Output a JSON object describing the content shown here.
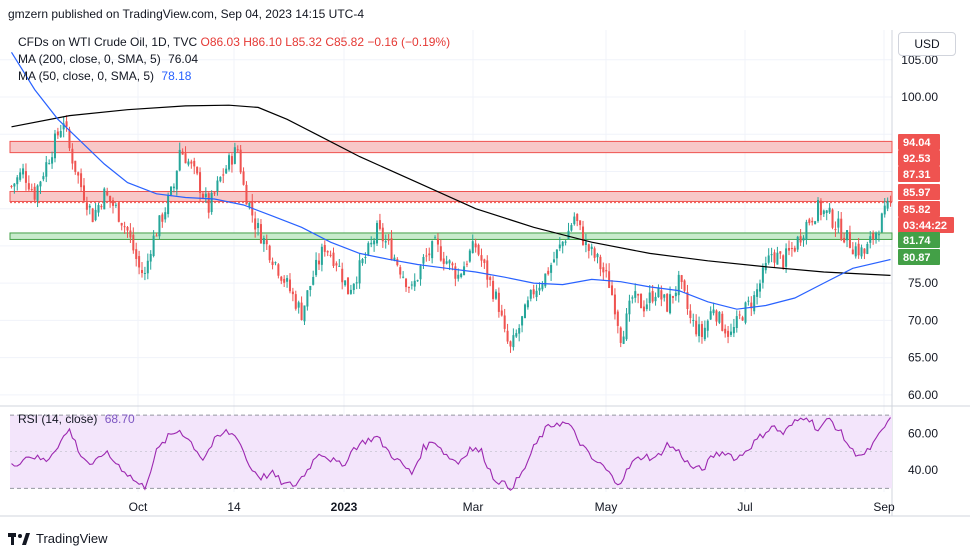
{
  "publisher": "gmzern published on TradingView.com, Sep 04, 2023 14:15 UTC-4",
  "legend": {
    "symbol": "CFDs on WTI Crude Oil, 1D, TVC",
    "open": "O86.03",
    "high": "H86.10",
    "low": "L85.32",
    "close": "C85.82",
    "change": "−0.16 (−0.19%)",
    "ma200_label": "MA (200, close, 0, SMA, 5)",
    "ma200_value": "76.04",
    "ma50_label": "MA (50, close, 0, SMA, 5)",
    "ma50_value": "78.18"
  },
  "currency_button": "USD",
  "rsi": {
    "label": "RSI (14, close)",
    "value": "68.70"
  },
  "footer": {
    "brand": "TradingView"
  },
  "colors": {
    "up": "#26a69a",
    "down": "#ef5350",
    "ma200": "#000000",
    "ma50": "#2962ff",
    "rsi": "#9c27b0",
    "resistance_zone": "#f8c8c8",
    "support_zone": "#c8ebcc"
  },
  "chart_data": {
    "type": "candlestick",
    "price_axis": {
      "ticks": [
        105.0,
        100.0,
        95.0,
        90.0,
        85.0,
        80.0,
        75.0,
        70.0,
        65.0,
        60.0
      ],
      "tick_labels": [
        "105.00",
        "100.00",
        "",
        "",
        "",
        "",
        "75.00",
        "70.00",
        "65.00",
        "60.00"
      ],
      "range": [
        58.5,
        109
      ]
    },
    "time_axis": {
      "labels": [
        "Oct",
        "14",
        "2023",
        "Mar",
        "May",
        "Jul",
        "Sep"
      ]
    },
    "level_labels": [
      {
        "text": "94.04",
        "value": 94.04,
        "color": "#ef5350"
      },
      {
        "text": "92.53",
        "value": 92.53,
        "color": "#ef5350"
      },
      {
        "text": "87.31",
        "value": 87.31,
        "color": "#ef5350"
      },
      {
        "text": "85.97",
        "value": 85.97,
        "color": "#ef5350"
      },
      {
        "text": "85.82",
        "value": 85.82,
        "color": "#ef5350"
      },
      {
        "text": "03:44:22",
        "value": 84.1,
        "color": "#ef5350"
      },
      {
        "text": "81.74",
        "value": 81.74,
        "color": "#43a047"
      },
      {
        "text": "80.87",
        "value": 80.87,
        "color": "#43a047"
      }
    ],
    "zones": [
      {
        "from": 92.53,
        "to": 94.04,
        "color": "#f8c8c8",
        "edge": "#ef5350"
      },
      {
        "from": 85.97,
        "to": 87.31,
        "color": "#f8c8c8",
        "edge": "#ef5350"
      },
      {
        "from": 80.87,
        "to": 81.74,
        "color": "#c8ebcc",
        "edge": "#43a047"
      }
    ],
    "close_line": 85.82,
    "close_path": [
      [
        0,
        88
      ],
      [
        4,
        90
      ],
      [
        8,
        87
      ],
      [
        12,
        91
      ],
      [
        16,
        95
      ],
      [
        18,
        97
      ],
      [
        20,
        93
      ],
      [
        24,
        88
      ],
      [
        28,
        84
      ],
      [
        32,
        87
      ],
      [
        36,
        85
      ],
      [
        40,
        82
      ],
      [
        44,
        77
      ],
      [
        46,
        76
      ],
      [
        48,
        80
      ],
      [
        52,
        84
      ],
      [
        56,
        88
      ],
      [
        58,
        93
      ],
      [
        60,
        92
      ],
      [
        64,
        89
      ],
      [
        68,
        85
      ],
      [
        72,
        89
      ],
      [
        76,
        92
      ],
      [
        78,
        93
      ],
      [
        80,
        88
      ],
      [
        84,
        83
      ],
      [
        88,
        80
      ],
      [
        92,
        77
      ],
      [
        96,
        74
      ],
      [
        100,
        71
      ],
      [
        104,
        76
      ],
      [
        108,
        80
      ],
      [
        112,
        78
      ],
      [
        116,
        74
      ],
      [
        120,
        77
      ],
      [
        124,
        80
      ],
      [
        126,
        82
      ],
      [
        130,
        80
      ],
      [
        134,
        77
      ],
      [
        138,
        74
      ],
      [
        142,
        78
      ],
      [
        146,
        80
      ],
      [
        150,
        78
      ],
      [
        154,
        76
      ],
      [
        158,
        79
      ],
      [
        160,
        80
      ],
      [
        164,
        76
      ],
      [
        168,
        72
      ],
      [
        170,
        68
      ],
      [
        172,
        66
      ],
      [
        174,
        68
      ],
      [
        176,
        70
      ],
      [
        180,
        74
      ],
      [
        184,
        76
      ],
      [
        188,
        79
      ],
      [
        192,
        82
      ],
      [
        194,
        84
      ],
      [
        196,
        82
      ],
      [
        198,
        80
      ],
      [
        202,
        78
      ],
      [
        206,
        75
      ],
      [
        208,
        72
      ],
      [
        210,
        68
      ],
      [
        212,
        70
      ],
      [
        214,
        73
      ],
      [
        218,
        72
      ],
      [
        222,
        74
      ],
      [
        226,
        72
      ],
      [
        230,
        75
      ],
      [
        232,
        73
      ],
      [
        234,
        70
      ],
      [
        238,
        68
      ],
      [
        242,
        72
      ],
      [
        244,
        70
      ],
      [
        248,
        68
      ],
      [
        252,
        71
      ],
      [
        256,
        73
      ],
      [
        260,
        77
      ],
      [
        262,
        79
      ],
      [
        266,
        78
      ],
      [
        270,
        80
      ],
      [
        274,
        83
      ],
      [
        278,
        85
      ],
      [
        282,
        84
      ],
      [
        286,
        82
      ],
      [
        290,
        80
      ],
      [
        294,
        79
      ],
      [
        298,
        82
      ],
      [
        302,
        85
      ],
      [
        303,
        85.82
      ]
    ],
    "ma200": [
      [
        0,
        96
      ],
      [
        20,
        97.5
      ],
      [
        40,
        98.3
      ],
      [
        60,
        98.8
      ],
      [
        75,
        98.9
      ],
      [
        85,
        98.6
      ],
      [
        95,
        97
      ],
      [
        105,
        95
      ],
      [
        120,
        92
      ],
      [
        140,
        88.5
      ],
      [
        160,
        85
      ],
      [
        180,
        82.5
      ],
      [
        200,
        80.5
      ],
      [
        220,
        79
      ],
      [
        240,
        78
      ],
      [
        260,
        77.2
      ],
      [
        280,
        76.5
      ],
      [
        303,
        76.04
      ]
    ],
    "ma50": [
      [
        0,
        106
      ],
      [
        8,
        101
      ],
      [
        16,
        97
      ],
      [
        24,
        94
      ],
      [
        32,
        91
      ],
      [
        40,
        88.5
      ],
      [
        50,
        87
      ],
      [
        60,
        86.5
      ],
      [
        70,
        86.3
      ],
      [
        80,
        85.5
      ],
      [
        90,
        84
      ],
      [
        100,
        82.5
      ],
      [
        110,
        80.5
      ],
      [
        120,
        79
      ],
      [
        130,
        78.2
      ],
      [
        140,
        77.5
      ],
      [
        150,
        77
      ],
      [
        160,
        76.5
      ],
      [
        170,
        75.8
      ],
      [
        180,
        75
      ],
      [
        190,
        74.8
      ],
      [
        200,
        75.5
      ],
      [
        210,
        75.2
      ],
      [
        220,
        74.5
      ],
      [
        230,
        74
      ],
      [
        240,
        72.5
      ],
      [
        250,
        71.5
      ],
      [
        260,
        72
      ],
      [
        270,
        73
      ],
      [
        280,
        75
      ],
      [
        290,
        77
      ],
      [
        303,
        78.18
      ]
    ],
    "rsi_axis": {
      "ticks": [
        60.0,
        40.0
      ],
      "tick_labels": [
        "60.00",
        "40.00"
      ],
      "range": [
        28,
        75
      ],
      "band": [
        30,
        70
      ]
    },
    "rsi_path": [
      [
        0,
        42
      ],
      [
        6,
        48
      ],
      [
        12,
        45
      ],
      [
        18,
        58
      ],
      [
        20,
        62
      ],
      [
        24,
        48
      ],
      [
        28,
        42
      ],
      [
        32,
        50
      ],
      [
        36,
        44
      ],
      [
        40,
        38
      ],
      [
        44,
        32
      ],
      [
        46,
        31
      ],
      [
        50,
        50
      ],
      [
        54,
        58
      ],
      [
        58,
        62
      ],
      [
        62,
        55
      ],
      [
        66,
        46
      ],
      [
        70,
        56
      ],
      [
        74,
        61
      ],
      [
        78,
        58
      ],
      [
        82,
        42
      ],
      [
        86,
        36
      ],
      [
        90,
        38
      ],
      [
        94,
        32
      ],
      [
        98,
        32
      ],
      [
        102,
        40
      ],
      [
        106,
        50
      ],
      [
        110,
        46
      ],
      [
        114,
        42
      ],
      [
        118,
        52
      ],
      [
        122,
        56
      ],
      [
        126,
        58
      ],
      [
        130,
        50
      ],
      [
        134,
        44
      ],
      [
        138,
        38
      ],
      [
        142,
        52
      ],
      [
        146,
        56
      ],
      [
        150,
        48
      ],
      [
        154,
        44
      ],
      [
        158,
        52
      ],
      [
        162,
        50
      ],
      [
        166,
        36
      ],
      [
        170,
        32
      ],
      [
        172,
        30
      ],
      [
        176,
        38
      ],
      [
        180,
        52
      ],
      [
        184,
        62
      ],
      [
        188,
        66
      ],
      [
        192,
        65
      ],
      [
        196,
        55
      ],
      [
        200,
        46
      ],
      [
        204,
        42
      ],
      [
        208,
        34
      ],
      [
        210,
        34
      ],
      [
        214,
        44
      ],
      [
        218,
        48
      ],
      [
        222,
        46
      ],
      [
        226,
        54
      ],
      [
        230,
        50
      ],
      [
        234,
        42
      ],
      [
        238,
        40
      ],
      [
        242,
        48
      ],
      [
        246,
        50
      ],
      [
        250,
        46
      ],
      [
        254,
        52
      ],
      [
        258,
        58
      ],
      [
        262,
        64
      ],
      [
        266,
        60
      ],
      [
        270,
        66
      ],
      [
        274,
        70
      ],
      [
        278,
        62
      ],
      [
        282,
        68
      ],
      [
        286,
        60
      ],
      [
        290,
        50
      ],
      [
        294,
        48
      ],
      [
        298,
        56
      ],
      [
        303,
        68.7
      ]
    ],
    "candle_count": 304
  }
}
